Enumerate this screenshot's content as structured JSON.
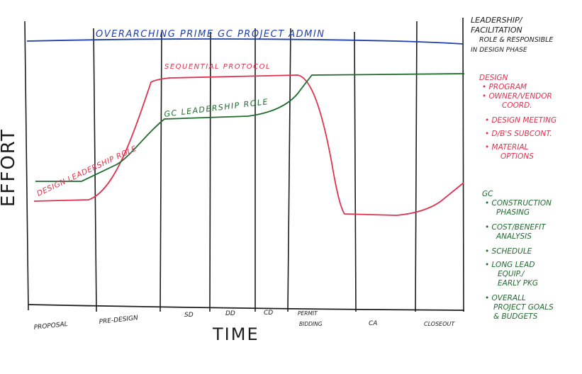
{
  "colors": {
    "ink": "#1d1d1d",
    "blue": "#1f3fb0",
    "red": "#e0314f",
    "green": "#1f6b2e"
  },
  "y_axis_label": "EFFORT",
  "x_axis_label": "TIME",
  "phases": [
    "PROPOSAL",
    "PRE-DESIGN",
    "SD",
    "DD",
    "CD",
    "PERMIT",
    "BIDDING",
    "CA",
    "CLOSEOUT"
  ],
  "lines": {
    "blue_label": "OVERARCHING PRIME GC PROJECT ADMIN",
    "red_top_label": "SEQUENTIAL PROTOCOL",
    "red_left_label": "DESIGN LEADERSHIP ROLE",
    "green_label": "GC LEADERSHIP ROLE"
  },
  "notes": {
    "heading": [
      "LEADERSHIP/",
      "FACILITATION",
      "ROLE & RESPONSIBLE",
      "IN DESIGN PHASE"
    ],
    "design_title": "DESIGN",
    "design_items": [
      "• PROGRAM",
      "• OWNER/VENDOR",
      "COORD.",
      "• DESIGN MEETING",
      "• D/B'S SUBCONT.",
      "• MATERIAL",
      "OPTIONS"
    ],
    "gc_title": "GC",
    "gc_items": [
      "• CONSTRUCTION",
      "PHASING",
      "• COST/BENEFIT",
      "ANALYSIS",
      "• SCHEDULE",
      "• LONG LEAD",
      "EQUIP./",
      "EARLY PKG",
      "• OVERALL",
      "PROJECT GOALS",
      "& BUDGETS"
    ]
  }
}
